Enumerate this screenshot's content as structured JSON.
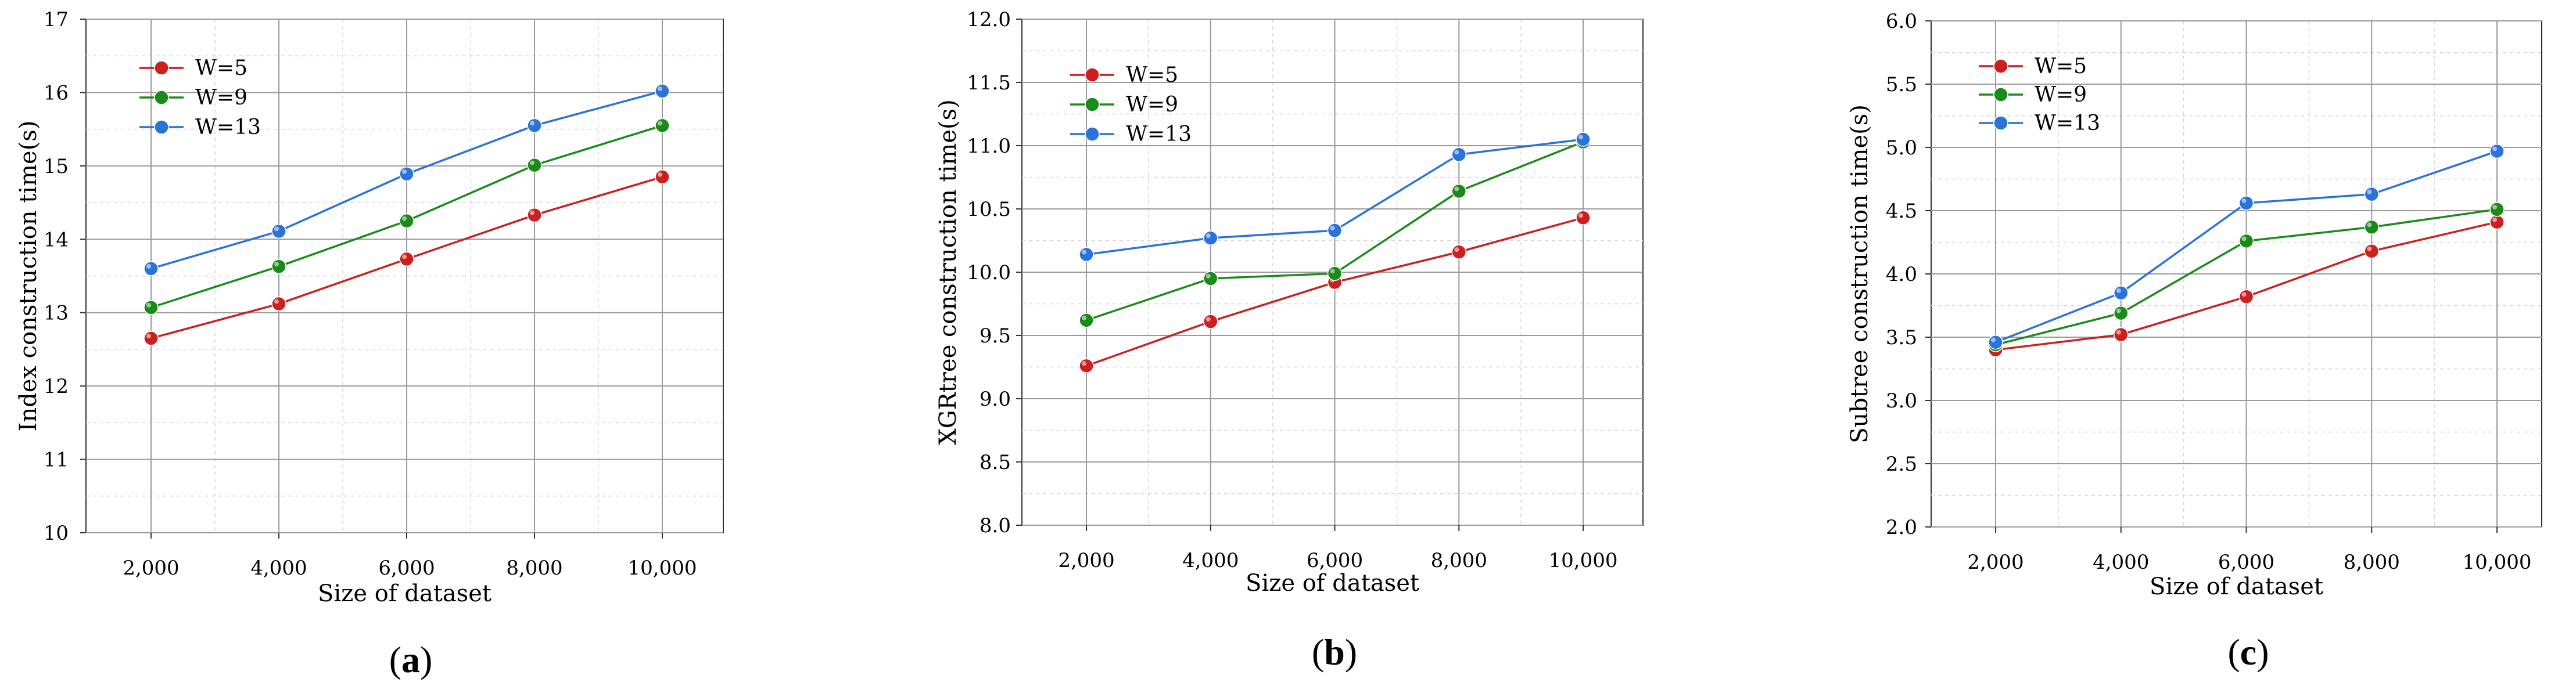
{
  "chart_data": [
    {
      "type": "line",
      "caption": "a",
      "xlabel": "Size of dataset",
      "ylabel": "Index construction time(s)",
      "categories": [
        "2,000",
        "4,000",
        "6,000",
        "8,000",
        "10,000"
      ],
      "ylim": [
        10,
        17
      ],
      "yticks": [
        "10",
        "11",
        "12",
        "13",
        "14",
        "15",
        "16",
        "17"
      ],
      "grid": true,
      "legend_position": "top-left",
      "series": [
        {
          "name": "W=5",
          "color": "#cc1f1f",
          "values": [
            12.65,
            13.12,
            13.73,
            14.33,
            14.85
          ]
        },
        {
          "name": "W=9",
          "color": "#1a8a1a",
          "values": [
            13.07,
            13.63,
            14.25,
            15.01,
            15.55
          ]
        },
        {
          "name": "W=13",
          "color": "#2a73d9",
          "values": [
            13.6,
            14.11,
            14.89,
            15.55,
            16.02
          ]
        }
      ]
    },
    {
      "type": "line",
      "caption": "b",
      "xlabel": "Size of dataset",
      "ylabel": "XGRtree construction time(s)",
      "categories": [
        "2,000",
        "4,000",
        "6,000",
        "8,000",
        "10,000"
      ],
      "ylim": [
        8.0,
        12.0
      ],
      "yticks": [
        "8.0",
        "8.5",
        "9.0",
        "9.5",
        "10.0",
        "10.5",
        "11.0",
        "11.5",
        "12.0"
      ],
      "grid": true,
      "legend_position": "top-left",
      "series": [
        {
          "name": "W=5",
          "color": "#cc1f1f",
          "values": [
            9.26,
            9.61,
            9.92,
            10.16,
            10.43
          ]
        },
        {
          "name": "W=9",
          "color": "#1a8a1a",
          "values": [
            9.62,
            9.95,
            9.99,
            10.64,
            11.03
          ]
        },
        {
          "name": "W=13",
          "color": "#2a73d9",
          "values": [
            10.14,
            10.27,
            10.33,
            10.93,
            11.05
          ]
        }
      ]
    },
    {
      "type": "line",
      "caption": "c",
      "xlabel": "Size of dataset",
      "ylabel": "Subtree construction time(s)",
      "categories": [
        "2,000",
        "4,000",
        "6,000",
        "8,000",
        "10,000"
      ],
      "ylim": [
        2.0,
        6.0
      ],
      "yticks": [
        "2.0",
        "2.5",
        "3.0",
        "3.5",
        "4.0",
        "4.5",
        "5.0",
        "5.5",
        "6.0"
      ],
      "grid": true,
      "legend_position": "top-left",
      "series": [
        {
          "name": "W=5",
          "color": "#cc1f1f",
          "values": [
            3.4,
            3.52,
            3.82,
            4.18,
            4.41
          ]
        },
        {
          "name": "W=9",
          "color": "#1a8a1a",
          "values": [
            3.44,
            3.69,
            4.26,
            4.37,
            4.51
          ]
        },
        {
          "name": "W=13",
          "color": "#2a73d9",
          "values": [
            3.46,
            3.85,
            4.56,
            4.63,
            4.97
          ]
        }
      ]
    }
  ]
}
